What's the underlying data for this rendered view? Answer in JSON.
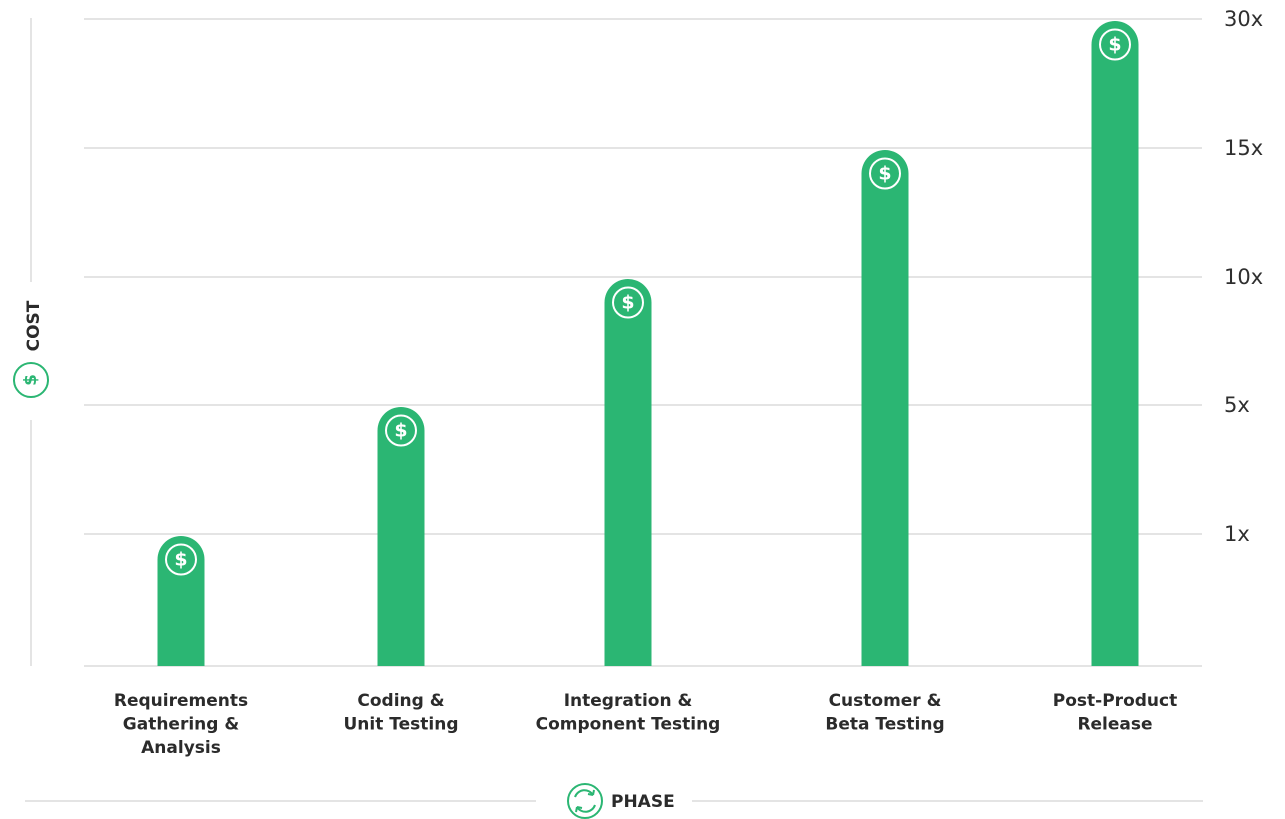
{
  "chart_data": {
    "type": "bar",
    "categories": [
      [
        "Requirements",
        "Gathering &",
        "Analysis"
      ],
      [
        "Coding &",
        "Unit Testing"
      ],
      [
        "Integration &",
        "Component Testing"
      ],
      [
        "Customer &",
        "Beta Testing"
      ],
      [
        "Post-Product",
        "Release"
      ]
    ],
    "values": [
      1,
      5,
      10,
      15,
      30
    ],
    "y_ticks": [
      "1x",
      "5x",
      "10x",
      "15x",
      "30x"
    ],
    "ylabel": "COST",
    "xlabel": "PHASE",
    "grid": true,
    "bar_icon": "dollar-coin-icon",
    "bar_icon_symbol": "$",
    "colors": {
      "bar": "#2bb673",
      "grid": "#c8c8c8",
      "text": "#2b2b2b"
    }
  },
  "axis_icons": {
    "cost_icon": "dollar-circle-icon",
    "cost_symbol": "$",
    "phase_icon": "cycle-arrows-icon"
  }
}
